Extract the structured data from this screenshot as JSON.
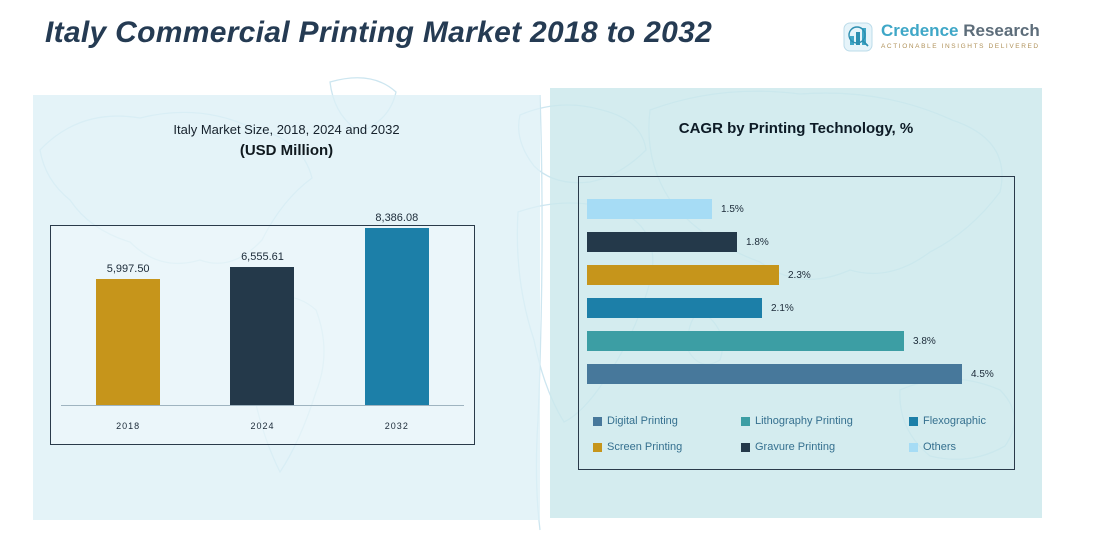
{
  "header": {
    "title": "Italy Commercial Printing Market 2018 to 2032",
    "logo": {
      "brand_primary": "Credence",
      "brand_secondary": "Research",
      "tagline": "Actionable Insights Delivered"
    }
  },
  "colors": {
    "title_navy": "#253b53",
    "panel_left_bg": "#ddeff6",
    "panel_right_bg": "#cbe8ec",
    "gold": "#c6951b",
    "dark_navy": "#24394a",
    "blue": "#1c7fa8",
    "teal": "#3c9ea4",
    "steel_blue": "#47789b",
    "light_blue": "#a6dcf5"
  },
  "chart_data": [
    {
      "type": "bar",
      "orientation": "vertical",
      "title": "Italy Market Size, 2018, 2024 and 2032",
      "subtitle": "(USD Million)",
      "categories": [
        "2018",
        "2024",
        "2032"
      ],
      "values": [
        5997.5,
        6555.61,
        8386.08
      ],
      "value_labels": [
        "5,997.50",
        "6,555.61",
        "8,386.08"
      ],
      "bar_colors": [
        "#c6951b",
        "#24394a",
        "#1c7fa8"
      ],
      "xlabel": "",
      "ylabel": "USD Million",
      "ylim": [
        0,
        8386.08
      ],
      "grid": false,
      "legend_position": "none"
    },
    {
      "type": "bar",
      "orientation": "horizontal",
      "title": "CAGR by Printing Technology, %",
      "categories": [
        "Others",
        "Gravure Printing",
        "Screen Printing",
        "Flexographic",
        "Lithography Printing",
        "Digital Printing"
      ],
      "values": [
        1.5,
        1.8,
        2.3,
        2.1,
        3.8,
        4.5
      ],
      "value_labels": [
        "1.5%",
        "1.8%",
        "2.3%",
        "2.1%",
        "3.8%",
        "4.5%"
      ],
      "bar_colors": [
        "#a6dcf5",
        "#24394a",
        "#c6951b",
        "#1c7fa8",
        "#3c9ea4",
        "#47789b"
      ],
      "xlabel": "CAGR %",
      "ylabel": "",
      "xlim": [
        0,
        4.5
      ],
      "grid": false,
      "legend_position": "bottom-inside",
      "legend": [
        {
          "label": "Digital Printing",
          "color": "#47789b"
        },
        {
          "label": "Lithography Printing",
          "color": "#3c9ea4"
        },
        {
          "label": "Flexographic",
          "color": "#1c7fa8"
        },
        {
          "label": "Screen Printing",
          "color": "#c6951b"
        },
        {
          "label": "Gravure Printing",
          "color": "#24394a"
        },
        {
          "label": "Others",
          "color": "#a6dcf5"
        }
      ]
    }
  ]
}
